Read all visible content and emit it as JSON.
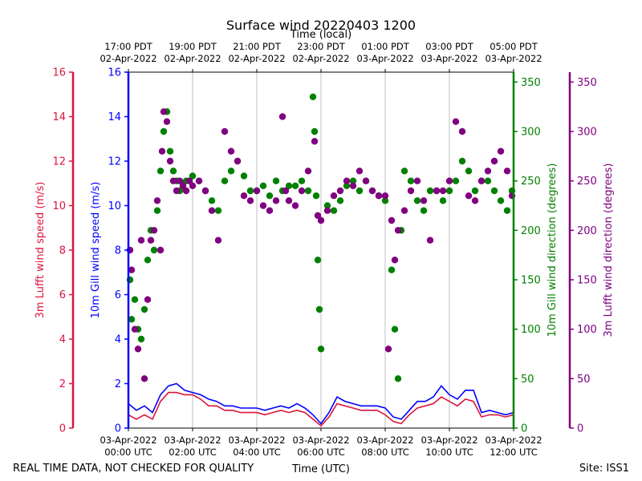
{
  "figure": {
    "title": "Surface wind 20220403 1200",
    "footer_left": "REAL TIME DATA, NOT CHECKED FOR QUALITY",
    "footer_right": "Site: ISS1",
    "colors": {
      "gill_speed": "#0000ff",
      "lufft_speed": "#dc143c",
      "gill_dir": "#008000",
      "lufft_dir": "#800080",
      "bg": "#ffffff",
      "grid": "#b0b0b0"
    }
  },
  "chart_data": {
    "type": "line+scatter",
    "title": "Surface wind 20220403 1200",
    "xlabel": "Time (UTC)",
    "xlabel_top": "Time (local)",
    "x_range_hours_utc": [
      0,
      12
    ],
    "x_ticks": [
      {
        "hour": 0,
        "utc": [
          "03-Apr-2022",
          "00:00 UTC"
        ],
        "local": [
          "17:00 PDT",
          "02-Apr-2022"
        ]
      },
      {
        "hour": 2,
        "utc": [
          "03-Apr-2022",
          "02:00 UTC"
        ],
        "local": [
          "19:00 PDT",
          "02-Apr-2022"
        ]
      },
      {
        "hour": 4,
        "utc": [
          "03-Apr-2022",
          "04:00 UTC"
        ],
        "local": [
          "21:00 PDT",
          "02-Apr-2022"
        ]
      },
      {
        "hour": 6,
        "utc": [
          "03-Apr-2022",
          "06:00 UTC"
        ],
        "local": [
          "23:00 PDT",
          "02-Apr-2022"
        ]
      },
      {
        "hour": 8,
        "utc": [
          "03-Apr-2022",
          "08:00 UTC"
        ],
        "local": [
          "01:00 PDT",
          "03-Apr-2022"
        ]
      },
      {
        "hour": 10,
        "utc": [
          "03-Apr-2022",
          "10:00 UTC"
        ],
        "local": [
          "03:00 PDT",
          "03-Apr-2022"
        ]
      },
      {
        "hour": 12,
        "utc": [
          "03-Apr-2022",
          "12:00 UTC"
        ],
        "local": [
          "05:00 PDT",
          "03-Apr-2022"
        ]
      }
    ],
    "axes": {
      "lufft_speed": {
        "label": "3m Lufft wind speed (m/s)",
        "ylim": [
          0,
          16
        ],
        "ticks": [
          0,
          2,
          4,
          6,
          8,
          10,
          12,
          14,
          16
        ],
        "color": "#dc143c"
      },
      "gill_speed": {
        "label": "10m Gill wind speed (m/s)",
        "ylim": [
          0,
          16
        ],
        "ticks": [
          0,
          2,
          4,
          6,
          8,
          10,
          12,
          14,
          16
        ],
        "color": "#0000ff"
      },
      "gill_dir": {
        "label": "10m Gill wind direction (degrees)",
        "ylim": [
          0,
          360
        ],
        "ticks": [
          0,
          50,
          100,
          150,
          200,
          250,
          300,
          350
        ],
        "color": "#008000"
      },
      "lufft_dir": {
        "label": "3m Lufft wind direction (degrees)",
        "ylim": [
          0,
          360
        ],
        "ticks": [
          0,
          50,
          100,
          150,
          200,
          250,
          300,
          350
        ],
        "color": "#800080"
      }
    },
    "series": [
      {
        "name": "10m Gill wind speed (m/s)",
        "kind": "line",
        "axis": "gill_speed",
        "x": [
          0,
          0.25,
          0.5,
          0.75,
          1,
          1.25,
          1.5,
          1.75,
          2,
          2.25,
          2.5,
          2.75,
          3,
          3.25,
          3.5,
          3.75,
          4,
          4.25,
          4.5,
          4.75,
          5,
          5.25,
          5.5,
          5.75,
          6,
          6.25,
          6.5,
          6.75,
          7,
          7.25,
          7.5,
          7.75,
          8,
          8.25,
          8.5,
          8.75,
          9,
          9.25,
          9.5,
          9.75,
          10,
          10.25,
          10.5,
          10.75,
          11,
          11.25,
          11.5,
          11.75,
          12
        ],
        "y": [
          1.1,
          0.8,
          1.0,
          0.7,
          1.5,
          1.9,
          2.0,
          1.7,
          1.6,
          1.5,
          1.3,
          1.2,
          1.0,
          1.0,
          0.9,
          0.9,
          0.9,
          0.8,
          0.9,
          1.0,
          0.9,
          1.1,
          0.9,
          0.6,
          0.2,
          0.7,
          1.4,
          1.2,
          1.1,
          1.0,
          1.0,
          1.0,
          0.9,
          0.5,
          0.4,
          0.8,
          1.2,
          1.2,
          1.4,
          1.9,
          1.5,
          1.3,
          1.7,
          1.7,
          0.7,
          0.8,
          0.7,
          0.6,
          0.7
        ]
      },
      {
        "name": "3m Lufft wind speed (m/s)",
        "kind": "line",
        "axis": "lufft_speed",
        "x": [
          0,
          0.25,
          0.5,
          0.75,
          1,
          1.25,
          1.5,
          1.75,
          2,
          2.25,
          2.5,
          2.75,
          3,
          3.25,
          3.5,
          3.75,
          4,
          4.25,
          4.5,
          4.75,
          5,
          5.25,
          5.5,
          5.75,
          6,
          6.25,
          6.5,
          6.75,
          7,
          7.25,
          7.5,
          7.75,
          8,
          8.25,
          8.5,
          8.75,
          9,
          9.25,
          9.5,
          9.75,
          10,
          10.25,
          10.5,
          10.75,
          11,
          11.25,
          11.5,
          11.75,
          12
        ],
        "y": [
          0.6,
          0.4,
          0.6,
          0.4,
          1.2,
          1.6,
          1.6,
          1.5,
          1.5,
          1.3,
          1.0,
          1.0,
          0.8,
          0.8,
          0.7,
          0.7,
          0.7,
          0.6,
          0.7,
          0.8,
          0.7,
          0.8,
          0.7,
          0.4,
          0.1,
          0.5,
          1.1,
          1.0,
          0.9,
          0.8,
          0.8,
          0.8,
          0.6,
          0.3,
          0.2,
          0.6,
          0.9,
          1.0,
          1.1,
          1.4,
          1.2,
          1.0,
          1.3,
          1.2,
          0.5,
          0.6,
          0.6,
          0.5,
          0.6
        ]
      },
      {
        "name": "10m Gill wind direction (degrees)",
        "kind": "scatter",
        "axis": "gill_dir",
        "x": [
          0.05,
          0.1,
          0.2,
          0.3,
          0.4,
          0.5,
          0.6,
          0.7,
          0.8,
          0.9,
          1.0,
          1.1,
          1.2,
          1.3,
          1.4,
          1.5,
          1.6,
          1.7,
          1.8,
          1.9,
          2.0,
          2.2,
          2.4,
          2.6,
          2.8,
          3.0,
          3.2,
          3.4,
          3.6,
          3.8,
          4.0,
          4.2,
          4.4,
          4.6,
          4.8,
          5.0,
          5.2,
          5.4,
          5.6,
          5.75,
          5.8,
          5.85,
          5.9,
          5.95,
          6.0,
          6.2,
          6.4,
          6.6,
          6.8,
          7.0,
          7.2,
          7.4,
          7.6,
          7.8,
          8.0,
          8.2,
          8.3,
          8.4,
          8.5,
          8.6,
          8.8,
          9.0,
          9.2,
          9.4,
          9.6,
          9.8,
          10.0,
          10.2,
          10.4,
          10.6,
          10.8,
          11.0,
          11.2,
          11.4,
          11.6,
          11.8,
          11.95
        ],
        "y": [
          150,
          110,
          130,
          100,
          90,
          120,
          170,
          200,
          180,
          220,
          260,
          300,
          320,
          280,
          260,
          250,
          240,
          245,
          250,
          250,
          255,
          250,
          240,
          230,
          220,
          250,
          260,
          270,
          255,
          240,
          240,
          245,
          235,
          250,
          240,
          245,
          245,
          250,
          240,
          335,
          300,
          235,
          170,
          120,
          80,
          225,
          220,
          230,
          245,
          250,
          240,
          250,
          240,
          235,
          230,
          160,
          100,
          50,
          200,
          260,
          250,
          230,
          220,
          240,
          240,
          230,
          240,
          250,
          270,
          260,
          240,
          250,
          250,
          240,
          230,
          220,
          240
        ]
      },
      {
        "name": "3m Lufft wind direction (degrees)",
        "kind": "scatter",
        "axis": "lufft_dir",
        "x": [
          0.05,
          0.1,
          0.2,
          0.3,
          0.4,
          0.5,
          0.6,
          0.7,
          0.8,
          0.9,
          1.0,
          1.05,
          1.1,
          1.2,
          1.3,
          1.4,
          1.5,
          1.6,
          1.7,
          1.8,
          1.9,
          2.0,
          2.2,
          2.4,
          2.6,
          2.8,
          3.0,
          3.2,
          3.4,
          3.6,
          3.8,
          4.0,
          4.2,
          4.4,
          4.6,
          4.8,
          4.9,
          5.0,
          5.2,
          5.4,
          5.6,
          5.8,
          5.9,
          6.0,
          6.2,
          6.4,
          6.6,
          6.8,
          7.0,
          7.2,
          7.4,
          7.6,
          7.8,
          8.0,
          8.1,
          8.2,
          8.3,
          8.4,
          8.6,
          8.8,
          9.0,
          9.2,
          9.4,
          9.6,
          9.8,
          10.0,
          10.2,
          10.4,
          10.6,
          10.8,
          11.0,
          11.2,
          11.4,
          11.6,
          11.8,
          11.95
        ],
        "y": [
          180,
          160,
          100,
          80,
          190,
          50,
          130,
          190,
          200,
          230,
          180,
          280,
          320,
          310,
          270,
          250,
          240,
          250,
          245,
          240,
          250,
          245,
          250,
          240,
          220,
          190,
          300,
          280,
          270,
          235,
          230,
          240,
          225,
          220,
          230,
          315,
          240,
          230,
          225,
          240,
          260,
          290,
          215,
          210,
          220,
          235,
          240,
          250,
          245,
          260,
          250,
          240,
          235,
          235,
          80,
          210,
          170,
          200,
          220,
          240,
          250,
          230,
          190,
          240,
          240,
          250,
          310,
          300,
          235,
          230,
          250,
          260,
          270,
          280,
          260,
          235
        ]
      }
    ]
  }
}
